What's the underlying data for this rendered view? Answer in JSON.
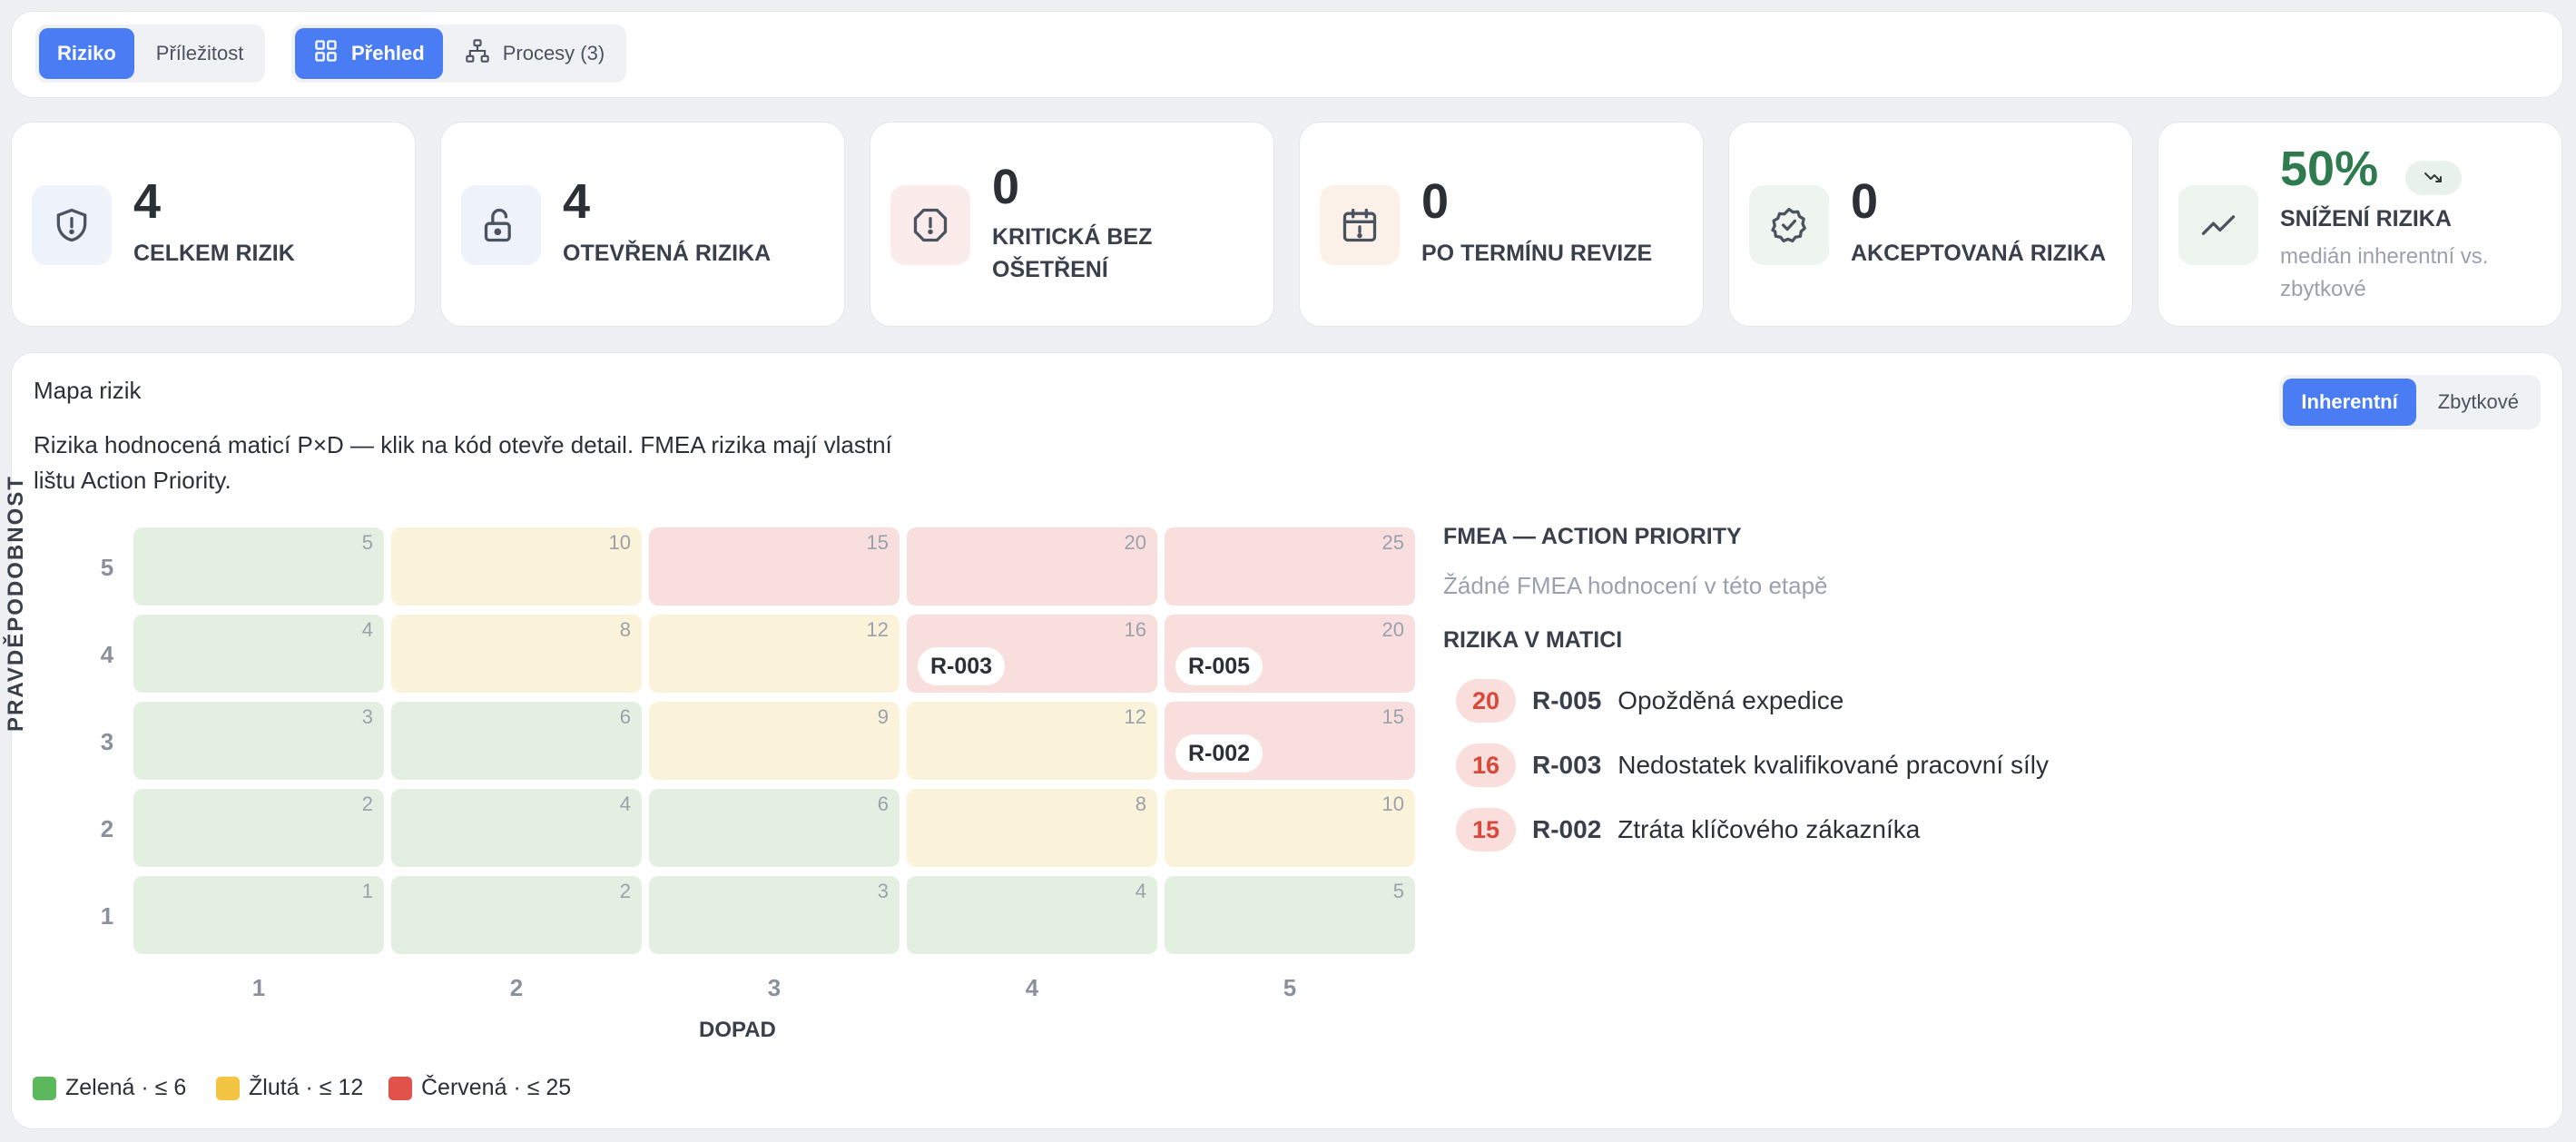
{
  "toolbar": {
    "type_tabs": [
      {
        "label": "Riziko",
        "active": true
      },
      {
        "label": "Příležitost",
        "active": false
      }
    ],
    "view_tabs": [
      {
        "label": "Přehled",
        "icon": "grid-icon",
        "active": true
      },
      {
        "label": "Procesy (3)",
        "icon": "hierarchy-icon",
        "active": false
      }
    ]
  },
  "stats": [
    {
      "value": "4",
      "label": "CELKEM RIZIK",
      "icon": "shield-icon",
      "icon_bg": "#eef2fb",
      "icon_color": "#4b5260"
    },
    {
      "value": "4",
      "label": "OTEVŘENÁ RIZIKA",
      "icon": "unlock-icon",
      "icon_bg": "#eef2fb",
      "icon_color": "#4b5260"
    },
    {
      "value": "0",
      "label": "KRITICKÁ BEZ OŠETŘENÍ",
      "icon": "alert-icon",
      "icon_bg": "#fbeceb",
      "icon_color": "#4b5260"
    },
    {
      "value": "0",
      "label": "PO TERMÍNU REVIZE",
      "icon": "calendar-icon",
      "icon_bg": "#fcf1e9",
      "icon_color": "#4b5260"
    },
    {
      "value": "0",
      "label": "AKCEPTOVANÁ RIZIKA",
      "icon": "badge-check-icon",
      "icon_bg": "#eef5ef",
      "icon_color": "#4b5260"
    },
    {
      "value": "50%",
      "label": "SNÍŽENÍ RIZIKA",
      "sub": "medián inherentní vs. zbytkové",
      "icon": "trend-up-icon",
      "trend_icon": "trend-down-icon",
      "value_color": "#2f7a4f",
      "icon_bg": "#eef5ef",
      "icon_color": "#4b5260"
    }
  ],
  "risk_map": {
    "title": "Mapa rizik",
    "description": "Rizika hodnocená maticí P×D — klik na kód otevře detail. FMEA rizika mají vlastní lištu Action Priority.",
    "view_toggle": [
      {
        "label": "Inherentní",
        "active": true
      },
      {
        "label": "Zbytkové",
        "active": false
      }
    ],
    "ylabel": "PRAVDĚPODOBNOST",
    "xlabel": "DOPAD",
    "y_ticks": [
      "5",
      "4",
      "3",
      "2",
      "1"
    ],
    "x_ticks": [
      "1",
      "2",
      "3",
      "4",
      "5"
    ],
    "rows": [
      {
        "p": 5,
        "cells": [
          {
            "score": "5",
            "level": "g"
          },
          {
            "score": "10",
            "level": "y"
          },
          {
            "score": "15",
            "level": "r"
          },
          {
            "score": "20",
            "level": "r"
          },
          {
            "score": "25",
            "level": "r"
          }
        ]
      },
      {
        "p": 4,
        "cells": [
          {
            "score": "4",
            "level": "g"
          },
          {
            "score": "8",
            "level": "y"
          },
          {
            "score": "12",
            "level": "y"
          },
          {
            "score": "16",
            "level": "r",
            "chip": "R-003"
          },
          {
            "score": "20",
            "level": "r",
            "chip": "R-005"
          }
        ]
      },
      {
        "p": 3,
        "cells": [
          {
            "score": "3",
            "level": "g"
          },
          {
            "score": "6",
            "level": "g"
          },
          {
            "score": "9",
            "level": "y"
          },
          {
            "score": "12",
            "level": "y"
          },
          {
            "score": "15",
            "level": "r",
            "chip": "R-002"
          }
        ]
      },
      {
        "p": 2,
        "cells": [
          {
            "score": "2",
            "level": "g"
          },
          {
            "score": "4",
            "level": "g"
          },
          {
            "score": "6",
            "level": "g"
          },
          {
            "score": "8",
            "level": "y"
          },
          {
            "score": "10",
            "level": "y"
          }
        ]
      },
      {
        "p": 1,
        "cells": [
          {
            "score": "1",
            "level": "g"
          },
          {
            "score": "2",
            "level": "g"
          },
          {
            "score": "3",
            "level": "g"
          },
          {
            "score": "4",
            "level": "g"
          },
          {
            "score": "5",
            "level": "g"
          }
        ]
      }
    ],
    "fmea_title": "FMEA — ACTION PRIORITY",
    "fmea_empty": "Žádné FMEA hodnocení v této etapě",
    "matrix_list_title": "RIZIKA V MATICI",
    "matrix_list": [
      {
        "score": "20",
        "code": "R-005",
        "name": "Opožděná expedice"
      },
      {
        "score": "16",
        "code": "R-003",
        "name": "Nedostatek kvalifikované pracovní síly"
      },
      {
        "score": "15",
        "code": "R-002",
        "name": "Ztráta klíčového zákazníka"
      }
    ],
    "legend": [
      {
        "label": "Zelená · ≤ 6",
        "color": "#5cb85c"
      },
      {
        "label": "Žlutá · ≤ 12",
        "color": "#f4c542"
      },
      {
        "label": "Červená · ≤ 25",
        "color": "#e0524a"
      }
    ]
  },
  "colors": {
    "accent": "#4a7cf3",
    "green": "#e3efe1",
    "yellow": "#fbf3d9",
    "red": "#f8dfdd"
  }
}
